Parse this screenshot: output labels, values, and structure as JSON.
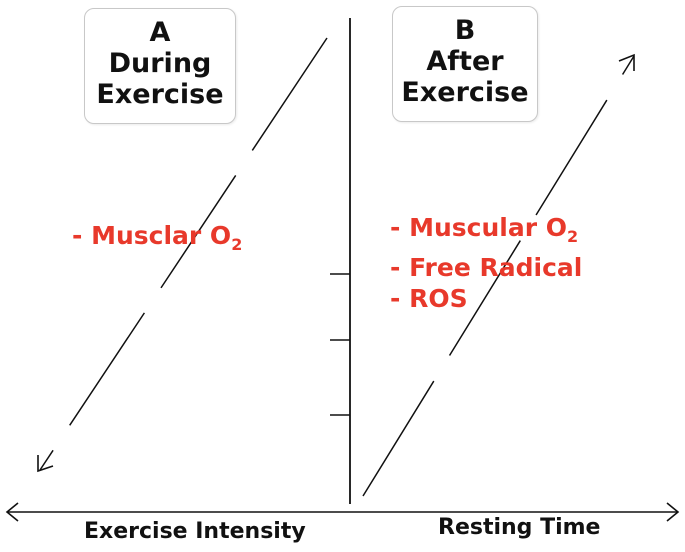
{
  "panels": {
    "a": {
      "letter": "A",
      "line1": "During",
      "line2": "Exercise"
    },
    "b": {
      "letter": "B",
      "line1": "After",
      "line2": "Exercise"
    }
  },
  "lists": {
    "a": [
      {
        "text": "- Musclar O",
        "sub": "2"
      }
    ],
    "b": [
      {
        "text": "- Muscular O",
        "sub": "2"
      },
      {
        "text": "- Free Radical",
        "sub": ""
      },
      {
        "text": "- ROS",
        "sub": ""
      }
    ]
  },
  "axes": {
    "left_label": "Exercise Intensity",
    "right_label": "Resting Time"
  },
  "colors": {
    "accent_red": "#e8392b",
    "line": "#111111"
  }
}
